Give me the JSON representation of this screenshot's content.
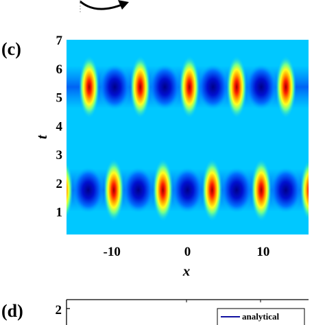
{
  "panels": {
    "c_label": "(c)",
    "d_label": "(d)"
  },
  "chart_data": [
    {
      "type": "heatmap",
      "panel": "(c)",
      "xlabel": "x",
      "ylabel": "t",
      "xlim": [
        -16,
        16
      ],
      "ylim": [
        0.2,
        7
      ],
      "xticks": [
        -10,
        0,
        10
      ],
      "xtick_labels": [
        "-10",
        "0",
        "10"
      ],
      "yticks": [
        1,
        2,
        3,
        4,
        5,
        6,
        7
      ],
      "ytick_labels": [
        "1",
        "2",
        "3",
        "4",
        "5",
        "6",
        "7"
      ],
      "colormap": "jet",
      "peaks": [
        {
          "x": -16.5,
          "t": 1.75
        },
        {
          "x": -9.75,
          "t": 1.75
        },
        {
          "x": -3.25,
          "t": 1.75
        },
        {
          "x": 3.25,
          "t": 1.75
        },
        {
          "x": 9.75,
          "t": 1.75
        },
        {
          "x": 16.25,
          "t": 1.75
        },
        {
          "x": -13.0,
          "t": 5.35
        },
        {
          "x": -6.25,
          "t": 5.35
        },
        {
          "x": 0.25,
          "t": 5.35
        },
        {
          "x": 6.5,
          "t": 5.35
        },
        {
          "x": 13.0,
          "t": 5.35
        }
      ]
    },
    {
      "type": "line",
      "panel": "(d)",
      "visible_yticks": [
        2
      ],
      "visible_ytick_labels": [
        "2"
      ],
      "series": [
        {
          "name": "analytical",
          "color": "#1010a0"
        }
      ]
    }
  ]
}
